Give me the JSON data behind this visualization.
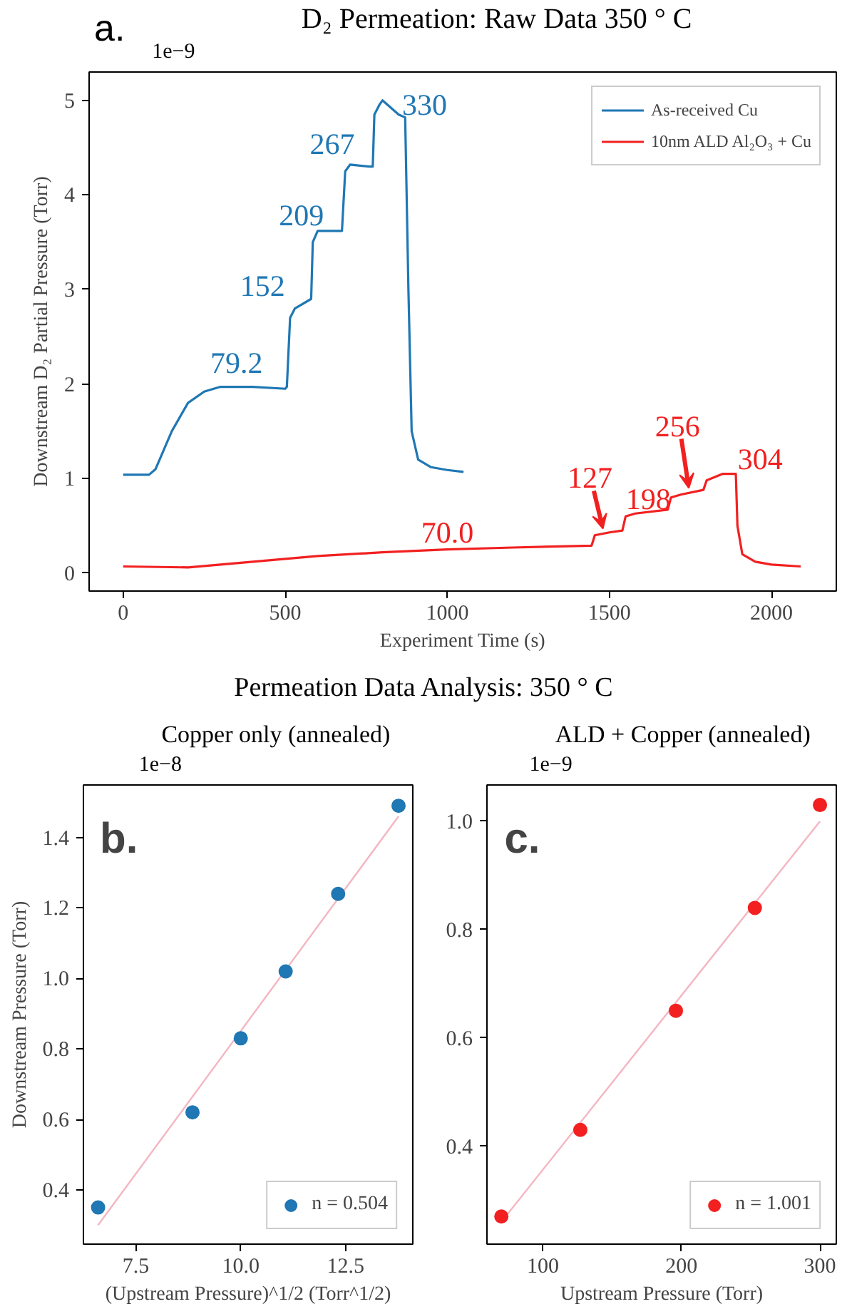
{
  "chart_data": [
    {
      "type": "line",
      "title": "D₂ Permeation: Raw Data 350 ° C",
      "xlabel": "Experiment Time (s)",
      "ylabel": "Downstream D₂ Partial Pressure (Torr)",
      "xlim": [
        -105,
        2200
      ],
      "ylim": [
        -0.19,
        5.3
      ],
      "xticks": [
        0,
        500,
        1000,
        1500,
        2000
      ],
      "yticks": [
        0,
        1,
        2,
        3,
        4,
        5
      ],
      "grid": false,
      "legend": "top right",
      "series": [
        {
          "name": "As-received Cu",
          "color": "#1f77b4",
          "x": [
            0,
            80,
            100,
            150,
            200,
            250,
            300,
            400,
            500,
            505,
            515,
            530,
            580,
            585,
            600,
            675,
            685,
            700,
            760,
            770,
            775,
            790,
            800,
            850,
            870,
            880,
            890,
            910,
            950,
            1000,
            1050
          ],
          "values": [
            1.04,
            1.04,
            1.1,
            1.5,
            1.8,
            1.92,
            1.97,
            1.97,
            1.95,
            1.97,
            2.7,
            2.8,
            2.9,
            3.5,
            3.62,
            3.62,
            4.25,
            4.32,
            4.3,
            4.3,
            4.85,
            4.95,
            5.0,
            4.85,
            4.82,
            3.0,
            1.5,
            1.2,
            1.12,
            1.09,
            1.07
          ]
        },
        {
          "name": "10nm ALD Al₂O₃ + Cu",
          "color": "#f22020",
          "x": [
            0,
            200,
            400,
            600,
            800,
            1000,
            1200,
            1445,
            1455,
            1500,
            1540,
            1550,
            1580,
            1680,
            1690,
            1720,
            1790,
            1800,
            1850,
            1890,
            1895,
            1910,
            1950,
            2000,
            2090
          ],
          "values": [
            0.07,
            0.06,
            0.12,
            0.18,
            0.22,
            0.25,
            0.27,
            0.29,
            0.4,
            0.43,
            0.45,
            0.6,
            0.63,
            0.67,
            0.8,
            0.83,
            0.88,
            0.98,
            1.05,
            1.05,
            0.5,
            0.2,
            0.12,
            0.09,
            0.07
          ]
        }
      ],
      "annotations": [
        "a.",
        "1e−9",
        "79.2",
        "152",
        "209",
        "267",
        "330",
        "70.0",
        "127",
        "198",
        "256",
        "304"
      ]
    },
    {
      "type": "scatter",
      "title": "Copper only (annealed)",
      "subtitle": "Permeation Data Analysis: 350 ° C",
      "xlabel": "(Upstream Pressure)^1/2 (Torr^1/2)",
      "ylabel": "Downstream Pressure (Torr)",
      "xlim": [
        6.25,
        14.1
      ],
      "ylim": [
        0.246,
        1.549
      ],
      "xticks": [
        {
          "value": 7.5,
          "label": "7.5"
        },
        {
          "value": 10,
          "label": "10.0"
        },
        {
          "value": 12.5,
          "label": "12.5"
        }
      ],
      "yticks": [
        {
          "value": 0.4,
          "label": "0.4"
        },
        {
          "value": 0.6,
          "label": "0.6"
        },
        {
          "value": 0.8,
          "label": "0.8"
        },
        {
          "value": 1,
          "label": "1.0"
        },
        {
          "value": 1.2,
          "label": "1.2"
        },
        {
          "value": 1.4,
          "label": "1.4"
        }
      ],
      "grid": false,
      "legend": "bottom right",
      "marker": "circle",
      "series": [
        {
          "type": "line",
          "marker": "none",
          "color": "#f4b6c2",
          "x": [
            6.6,
            13.76
          ],
          "values": [
            0.3,
            1.46
          ]
        },
        {
          "name": "n = 0.504",
          "color": "#1f77b4",
          "x": [
            6.6,
            8.85,
            10.0,
            11.07,
            12.32,
            13.76
          ],
          "values": [
            0.35,
            0.62,
            0.83,
            1.02,
            1.24,
            1.49
          ]
        }
      ],
      "annotations": [
        "b.",
        "1e−8"
      ]
    },
    {
      "type": "scatter",
      "title": "ALD + Copper (annealed)",
      "xlabel": "Upstream Pressure (Torr)",
      "xlim": [
        59.6,
        311.8
      ],
      "ylim": [
        0.219,
        1.067
      ],
      "xticks": [
        100,
        200,
        300
      ],
      "yticks": [
        {
          "value": 0.4,
          "label": "0.4"
        },
        {
          "value": 0.6,
          "label": "0.6"
        },
        {
          "value": 0.8,
          "label": "0.8"
        },
        {
          "value": 1,
          "label": "1.0"
        }
      ],
      "grid": false,
      "legend": "bottom right",
      "marker": "circle",
      "series": [
        {
          "type": "line",
          "marker": "none",
          "color": "#f4b6c2",
          "x": [
            70,
            300
          ],
          "values": [
            0.26,
            1.0
          ]
        },
        {
          "name": "n = 1.001",
          "color": "#f22020",
          "x": [
            70,
            127,
            196,
            253,
            300
          ],
          "values": [
            0.27,
            0.43,
            0.65,
            0.84,
            1.03
          ]
        }
      ],
      "annotations": [
        "c.",
        "1e−9"
      ]
    }
  ]
}
